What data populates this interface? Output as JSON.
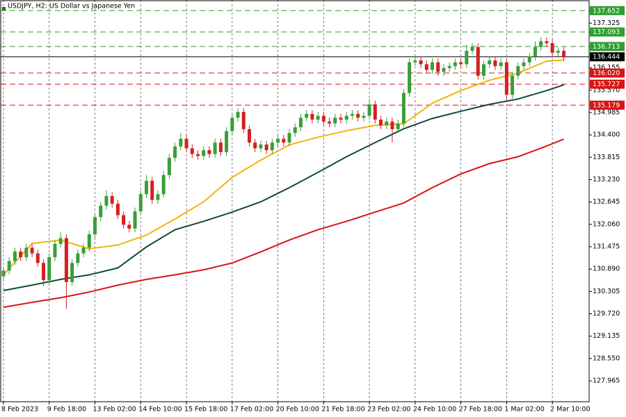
{
  "chart_data": {
    "type": "candlestick",
    "title": "USDJPY, H2:  US Dollar vs Japanese Yen",
    "categories": [
      "8 Feb 2023",
      null,
      null,
      null,
      null,
      null,
      null,
      null,
      "9 Feb 18:00",
      null,
      null,
      null,
      null,
      null,
      null,
      null,
      "13 Feb 02:00",
      null,
      null,
      null,
      null,
      null,
      null,
      null,
      "14 Feb 10:00",
      null,
      null,
      null,
      null,
      null,
      null,
      null,
      "15 Feb 18:00",
      null,
      null,
      null,
      null,
      null,
      null,
      null,
      "17 Feb 02:00",
      null,
      null,
      null,
      null,
      null,
      null,
      null,
      "20 Feb 10:00",
      null,
      null,
      null,
      null,
      null,
      null,
      null,
      "21 Feb 18:00",
      null,
      null,
      null,
      null,
      null,
      null,
      null,
      "23 Feb 02:00",
      null,
      null,
      null,
      null,
      null,
      null,
      null,
      "24 Feb 10:00",
      null,
      null,
      null,
      null,
      null,
      null,
      null,
      "27 Feb 18:00",
      null,
      null,
      null,
      null,
      null,
      null,
      null,
      "1 Mar 02:00",
      null,
      null,
      null,
      null,
      null,
      null,
      null,
      "2 Mar 10:00",
      null,
      null
    ],
    "open": [
      130.7,
      130.85,
      131.1,
      131.35,
      131.2,
      131.45,
      131.3,
      131.05,
      130.6,
      131.2,
      131.55,
      131.7,
      130.55,
      131.05,
      131.3,
      131.45,
      131.8,
      132.25,
      132.55,
      132.8,
      132.6,
      132.3,
      132.05,
      131.95,
      132.4,
      132.85,
      133.2,
      132.7,
      132.85,
      133.35,
      133.8,
      134.1,
      134.3,
      134.05,
      133.9,
      133.85,
      134.0,
      133.9,
      134.2,
      133.95,
      134.5,
      134.85,
      135.0,
      134.55,
      134.2,
      134.05,
      134.15,
      134.0,
      134.2,
      134.3,
      134.2,
      134.45,
      134.6,
      134.85,
      134.95,
      134.8,
      134.9,
      134.75,
      134.7,
      134.85,
      134.8,
      134.9,
      134.95,
      134.85,
      134.9,
      135.2,
      134.8,
      134.65,
      134.75,
      134.55,
      134.7,
      135.5,
      136.3,
      136.35,
      136.25,
      136.1,
      136.3,
      136.05,
      136.15,
      136.2,
      136.3,
      136.25,
      136.6,
      136.7,
      135.95,
      136.25,
      136.35,
      136.2,
      136.3,
      135.45,
      135.95,
      136.2,
      136.3,
      136.45,
      136.7,
      136.85,
      136.8,
      136.55,
      136.6
    ],
    "high": [
      130.95,
      131.2,
      131.45,
      131.45,
      131.55,
      131.55,
      131.4,
      131.15,
      131.3,
      131.65,
      131.85,
      131.8,
      131.15,
      131.4,
      131.55,
      131.9,
      132.35,
      132.65,
      132.95,
      132.9,
      132.7,
      132.4,
      132.15,
      132.5,
      132.95,
      133.35,
      133.3,
      132.95,
      133.45,
      133.9,
      134.2,
      134.45,
      134.4,
      134.15,
      134.0,
      134.1,
      134.1,
      134.3,
      134.3,
      134.6,
      134.95,
      135.1,
      135.1,
      134.65,
      134.3,
      134.25,
      134.25,
      134.3,
      134.4,
      134.4,
      134.55,
      134.7,
      134.95,
      135.05,
      135.05,
      135.0,
      135.0,
      134.85,
      134.95,
      134.95,
      135.0,
      135.05,
      135.05,
      135.0,
      135.35,
      135.3,
      134.9,
      134.85,
      134.85,
      134.8,
      135.6,
      136.4,
      136.45,
      136.45,
      136.35,
      136.4,
      136.4,
      136.25,
      136.3,
      136.4,
      136.4,
      136.75,
      136.8,
      136.8,
      136.35,
      136.45,
      136.45,
      136.4,
      136.4,
      136.05,
      136.3,
      136.4,
      136.55,
      136.85,
      136.95,
      136.95,
      136.9,
      136.7,
      136.7
    ],
    "low": [
      130.6,
      130.75,
      131.0,
      131.1,
      131.1,
      131.2,
      130.95,
      130.45,
      130.5,
      131.1,
      131.45,
      129.85,
      130.45,
      130.95,
      131.2,
      131.35,
      131.7,
      132.15,
      132.45,
      132.5,
      132.2,
      131.95,
      131.85,
      131.85,
      132.3,
      132.75,
      132.6,
      132.6,
      132.75,
      133.25,
      133.7,
      134.0,
      133.95,
      133.8,
      133.75,
      133.75,
      133.8,
      133.8,
      133.85,
      133.85,
      134.4,
      134.75,
      134.45,
      134.1,
      133.95,
      133.95,
      133.9,
      133.9,
      134.1,
      134.1,
      134.1,
      134.35,
      134.5,
      134.75,
      134.7,
      134.7,
      134.65,
      134.6,
      134.6,
      134.7,
      134.7,
      134.8,
      134.75,
      134.75,
      134.8,
      134.7,
      134.55,
      134.55,
      134.2,
      134.45,
      134.6,
      135.4,
      136.2,
      136.15,
      136.0,
      136.0,
      135.95,
      135.95,
      136.05,
      136.1,
      136.15,
      136.15,
      136.5,
      135.85,
      135.85,
      136.15,
      136.1,
      136.1,
      135.3,
      135.35,
      135.85,
      136.1,
      136.2,
      136.35,
      136.6,
      136.7,
      136.45,
      136.45,
      136.34
    ],
    "close": [
      130.85,
      131.1,
      131.35,
      131.2,
      131.45,
      131.3,
      131.05,
      130.6,
      131.2,
      131.55,
      131.7,
      130.55,
      131.05,
      131.3,
      131.45,
      131.8,
      132.25,
      132.55,
      132.8,
      132.6,
      132.3,
      132.05,
      131.95,
      132.4,
      132.85,
      133.2,
      132.7,
      132.85,
      133.35,
      133.8,
      134.1,
      134.3,
      134.05,
      133.9,
      133.85,
      134.0,
      133.9,
      134.2,
      133.95,
      134.5,
      134.85,
      135.0,
      134.55,
      134.2,
      134.05,
      134.15,
      134.0,
      134.2,
      134.3,
      134.2,
      134.45,
      134.6,
      134.85,
      134.95,
      134.8,
      134.9,
      134.75,
      134.7,
      134.85,
      134.8,
      134.9,
      134.95,
      134.85,
      134.9,
      135.2,
      134.8,
      134.65,
      134.75,
      134.55,
      134.7,
      135.5,
      136.3,
      136.35,
      136.25,
      136.1,
      136.3,
      136.05,
      136.15,
      136.2,
      136.3,
      136.25,
      136.6,
      136.7,
      135.95,
      136.25,
      136.35,
      136.2,
      136.3,
      135.45,
      135.95,
      136.2,
      136.3,
      136.45,
      136.7,
      136.85,
      136.8,
      136.55,
      136.6,
      136.444
    ],
    "up_color": "#3a9e3a",
    "down_color": "#d42020",
    "series": [
      {
        "color": "#f2b30c",
        "x": [
          0,
          5,
          10,
          15,
          20,
          25,
          30,
          35,
          40,
          45,
          50,
          55,
          60,
          65,
          70,
          75,
          80,
          85,
          90,
          95,
          98
        ],
        "values": [
          130.74,
          131.56,
          131.65,
          131.42,
          131.52,
          131.78,
          132.2,
          132.65,
          133.29,
          133.74,
          134.14,
          134.34,
          134.51,
          134.65,
          134.69,
          135.23,
          135.56,
          135.83,
          136.02,
          136.33,
          136.36
        ]
      },
      {
        "color": "#0e4a38",
        "x": [
          0,
          5,
          10,
          15,
          20,
          25,
          30,
          35,
          40,
          45,
          50,
          55,
          60,
          65,
          70,
          75,
          80,
          85,
          90,
          95,
          98
        ],
        "values": [
          130.33,
          130.47,
          130.62,
          130.74,
          130.92,
          131.47,
          131.92,
          132.14,
          132.38,
          132.65,
          133.02,
          133.42,
          133.83,
          134.2,
          134.56,
          134.83,
          135.02,
          135.2,
          135.34,
          135.56,
          135.71
        ]
      },
      {
        "color": "#d81414",
        "x": [
          0,
          5,
          10,
          15,
          20,
          25,
          30,
          35,
          40,
          45,
          50,
          55,
          60,
          65,
          70,
          75,
          80,
          85,
          90,
          95,
          98
        ],
        "values": [
          129.89,
          130.02,
          130.14,
          130.29,
          130.47,
          130.62,
          130.74,
          130.87,
          131.05,
          131.34,
          131.65,
          131.92,
          132.14,
          132.38,
          132.62,
          133.02,
          133.38,
          133.65,
          133.83,
          134.11,
          134.29
        ]
      }
    ],
    "ylim": [
      127.42,
      137.93
    ],
    "yticks": [
      137.325,
      136.155,
      {
        "value": 135.57,
        "label": "135.570"
      },
      134.985,
      {
        "value": 134.4,
        "label": "134.400"
      },
      133.815,
      {
        "value": 133.23,
        "label": "133.230"
      },
      132.645,
      {
        "value": 132.06,
        "label": "132.060"
      },
      131.475,
      {
        "value": 130.89,
        "label": "130.890"
      },
      130.305,
      {
        "value": 129.72,
        "label": "129.720"
      },
      129.135,
      {
        "value": 128.55,
        "label": "128.550"
      },
      127.965
    ],
    "resistance_levels": [
      137.652,
      137.093,
      136.713
    ],
    "resistance_color": "#2e9e2e",
    "support_levels": [
      {
        "value": 136.02,
        "label": "136.020"
      },
      135.727,
      135.179
    ],
    "support_color": "#d81414",
    "current_price": 136.444,
    "grid": true
  }
}
